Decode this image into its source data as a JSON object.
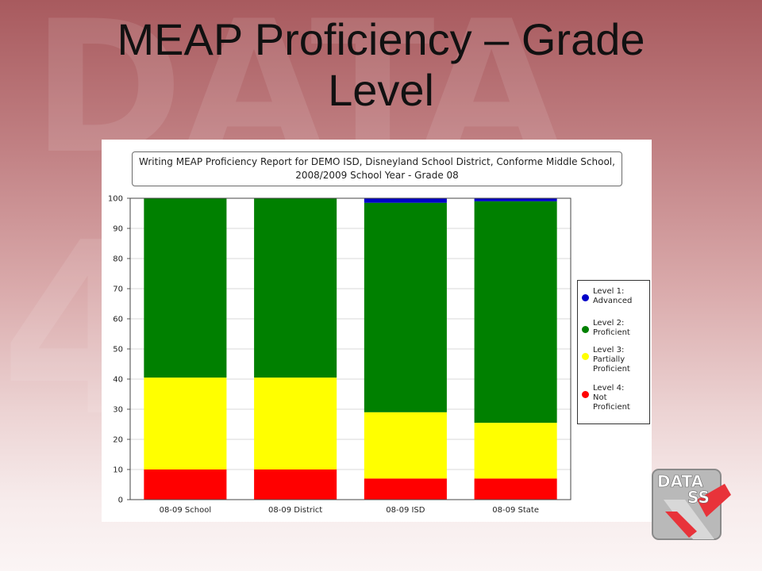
{
  "slide": {
    "title": "MEAP Proficiency – Grade Level"
  },
  "colors": {
    "level1": "#0000c8",
    "level2": "#008000",
    "level3": "#ffff00",
    "level4": "#ff0000"
  },
  "chart_data": {
    "type": "bar",
    "stacked": true,
    "title": "Writing MEAP Proficiency Report for DEMO ISD, Disneyland School District, Conforme Middle School, 2008/2009 School Year - Grade 08",
    "categories": [
      "08-09 School",
      "08-09 District",
      "08-09 ISD",
      "08-09 State"
    ],
    "series": [
      {
        "name": "Level 4: Not Proficient",
        "color": "#ff0000",
        "values": [
          10,
          10,
          7,
          7
        ]
      },
      {
        "name": "Level 3: Partially Proficient",
        "color": "#ffff00",
        "values": [
          30.5,
          30.5,
          22,
          18.5
        ]
      },
      {
        "name": "Level 2: Proficient",
        "color": "#008000",
        "values": [
          59.5,
          59.5,
          69.5,
          73.5
        ]
      },
      {
        "name": "Level 1: Advanced",
        "color": "#0000c8",
        "values": [
          0,
          0,
          1.5,
          1
        ]
      }
    ],
    "ylim": [
      0,
      100
    ],
    "yticks": [
      "0",
      "10",
      "20",
      "30",
      "40",
      "50",
      "60",
      "70",
      "80",
      "90",
      "100"
    ],
    "xlabel": "",
    "ylabel": "",
    "grid": true,
    "legend_position": "right",
    "legend": [
      {
        "lines": [
          "Level 1:",
          "Advanced"
        ],
        "color": "#0000c8"
      },
      {
        "lines": [
          "Level 2:",
          "Proficient"
        ],
        "color": "#008000"
      },
      {
        "lines": [
          "Level 3:",
          "Partially",
          "Proficient"
        ],
        "color": "#ffff00"
      },
      {
        "lines": [
          "Level 4:",
          "Not",
          "Proficient"
        ],
        "color": "#ff0000"
      }
    ]
  },
  "logo": {
    "text": "DATA",
    "subtext": "SS"
  }
}
